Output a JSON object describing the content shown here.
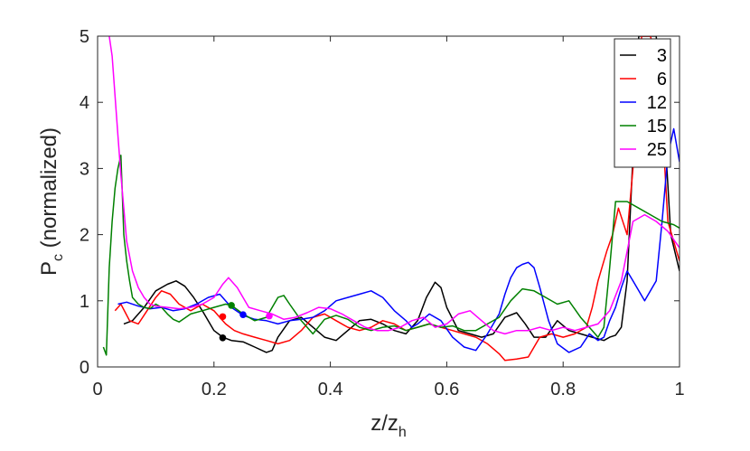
{
  "chart_data": {
    "type": "line",
    "xlabel": "z/z",
    "xlabel_sub": "h",
    "ylabel": "P",
    "ylabel_sub": "c",
    "ylabel_suffix": " (normalized)",
    "xlim": [
      0,
      1
    ],
    "ylim": [
      0,
      5
    ],
    "xticks": [
      0,
      0.2,
      0.4,
      0.6,
      0.8,
      1
    ],
    "xtick_labels": [
      "0",
      "0.2",
      "0.4",
      "0.6",
      "0.8",
      "1"
    ],
    "yticks": [
      0,
      1,
      2,
      3,
      4,
      5
    ],
    "ytick_labels": [
      "0",
      "1",
      "2",
      "3",
      "4",
      "5"
    ],
    "grid": false,
    "legend_position": "top-right",
    "series": [
      {
        "name": "3",
        "color": "#000000",
        "x": [
          0.045,
          0.06,
          0.08,
          0.1,
          0.12,
          0.135,
          0.15,
          0.165,
          0.18,
          0.2,
          0.215,
          0.23,
          0.25,
          0.27,
          0.29,
          0.3,
          0.31,
          0.33,
          0.35,
          0.37,
          0.39,
          0.41,
          0.43,
          0.45,
          0.47,
          0.49,
          0.51,
          0.53,
          0.55,
          0.565,
          0.58,
          0.59,
          0.6,
          0.62,
          0.64,
          0.66,
          0.68,
          0.7,
          0.72,
          0.735,
          0.75,
          0.77,
          0.79,
          0.81,
          0.83,
          0.85,
          0.87,
          0.88,
          0.89,
          0.9,
          0.91,
          0.92,
          0.93,
          0.945,
          0.96,
          0.975,
          0.985,
          1.0
        ],
        "y": [
          0.65,
          0.7,
          0.9,
          1.15,
          1.25,
          1.3,
          1.22,
          1.05,
          0.85,
          0.55,
          0.45,
          0.4,
          0.38,
          0.3,
          0.22,
          0.25,
          0.45,
          0.7,
          0.75,
          0.6,
          0.45,
          0.4,
          0.55,
          0.7,
          0.72,
          0.65,
          0.55,
          0.5,
          0.7,
          1.05,
          1.28,
          1.2,
          0.9,
          0.55,
          0.5,
          0.45,
          0.5,
          0.75,
          0.82,
          0.65,
          0.45,
          0.45,
          0.7,
          0.55,
          0.5,
          0.45,
          0.4,
          0.45,
          0.48,
          0.6,
          1.3,
          3.2,
          5.0,
          5.0,
          5.0,
          3.5,
          2.0,
          1.45
        ],
        "marker": [
          0.215,
          0.44
        ]
      },
      {
        "name": "6",
        "color": "#ff0000",
        "x": [
          0.03,
          0.04,
          0.055,
          0.07,
          0.085,
          0.1,
          0.11,
          0.125,
          0.14,
          0.16,
          0.18,
          0.2,
          0.21,
          0.22,
          0.235,
          0.25,
          0.27,
          0.29,
          0.31,
          0.33,
          0.35,
          0.37,
          0.39,
          0.41,
          0.43,
          0.45,
          0.47,
          0.49,
          0.51,
          0.53,
          0.55,
          0.57,
          0.59,
          0.61,
          0.63,
          0.65,
          0.67,
          0.69,
          0.7,
          0.72,
          0.74,
          0.76,
          0.78,
          0.8,
          0.82,
          0.84,
          0.85,
          0.86,
          0.875,
          0.885,
          0.895,
          0.91,
          0.92,
          0.935,
          0.95,
          0.965,
          0.98,
          1.0
        ],
        "y": [
          0.85,
          0.95,
          0.7,
          0.65,
          0.85,
          1.05,
          1.15,
          1.1,
          0.95,
          0.85,
          0.95,
          0.85,
          0.75,
          0.65,
          0.55,
          0.5,
          0.45,
          0.4,
          0.35,
          0.4,
          0.55,
          0.75,
          0.8,
          0.7,
          0.6,
          0.55,
          0.6,
          0.7,
          0.65,
          0.55,
          0.6,
          0.65,
          0.6,
          0.55,
          0.5,
          0.45,
          0.35,
          0.2,
          0.1,
          0.12,
          0.15,
          0.45,
          0.5,
          0.45,
          0.5,
          0.6,
          0.9,
          1.3,
          1.75,
          2.0,
          2.4,
          2.0,
          3.0,
          5.0,
          5.0,
          4.5,
          2.2,
          1.6
        ],
        "marker": [
          0.215,
          0.76
        ]
      },
      {
        "name": "12",
        "color": "#0000ff",
        "x": [
          0.035,
          0.05,
          0.07,
          0.09,
          0.11,
          0.13,
          0.15,
          0.17,
          0.19,
          0.21,
          0.23,
          0.25,
          0.27,
          0.29,
          0.31,
          0.33,
          0.35,
          0.37,
          0.39,
          0.41,
          0.43,
          0.45,
          0.47,
          0.49,
          0.51,
          0.53,
          0.54,
          0.55,
          0.57,
          0.59,
          0.61,
          0.63,
          0.65,
          0.67,
          0.69,
          0.7,
          0.71,
          0.72,
          0.73,
          0.74,
          0.75,
          0.76,
          0.775,
          0.79,
          0.81,
          0.83,
          0.845,
          0.86,
          0.87,
          0.88,
          0.89,
          0.9,
          0.91,
          0.92,
          0.94,
          0.96,
          0.97,
          0.98,
          0.99,
          1.0
        ],
        "y": [
          0.95,
          0.98,
          0.92,
          0.88,
          0.9,
          0.85,
          0.88,
          0.95,
          1.05,
          1.1,
          0.9,
          0.78,
          0.72,
          0.7,
          0.65,
          0.7,
          0.72,
          0.75,
          0.85,
          1.0,
          1.05,
          1.1,
          1.15,
          1.05,
          0.85,
          0.7,
          0.6,
          0.65,
          0.8,
          0.7,
          0.45,
          0.3,
          0.25,
          0.5,
          0.8,
          1.1,
          1.35,
          1.5,
          1.55,
          1.58,
          1.5,
          1.2,
          0.7,
          0.35,
          0.22,
          0.3,
          0.5,
          0.4,
          0.45,
          0.7,
          0.9,
          1.2,
          1.45,
          1.3,
          1.0,
          1.3,
          2.2,
          3.2,
          3.6,
          3.1
        ],
        "marker": [
          0.25,
          0.79
        ]
      },
      {
        "name": "15",
        "color": "#008000",
        "x": [
          0.01,
          0.015,
          0.02,
          0.025,
          0.03,
          0.035,
          0.04,
          0.045,
          0.05,
          0.055,
          0.06,
          0.07,
          0.08,
          0.09,
          0.1,
          0.11,
          0.12,
          0.13,
          0.14,
          0.16,
          0.18,
          0.2,
          0.22,
          0.23,
          0.25,
          0.27,
          0.29,
          0.31,
          0.32,
          0.33,
          0.35,
          0.37,
          0.39,
          0.41,
          0.43,
          0.45,
          0.47,
          0.49,
          0.51,
          0.53,
          0.55,
          0.57,
          0.59,
          0.61,
          0.63,
          0.65,
          0.67,
          0.69,
          0.71,
          0.73,
          0.75,
          0.77,
          0.79,
          0.81,
          0.83,
          0.85,
          0.86,
          0.87,
          0.88,
          0.89,
          0.91,
          0.93,
          0.95,
          0.97,
          0.99,
          1.0
        ],
        "y": [
          0.3,
          0.18,
          1.5,
          2.2,
          2.7,
          3.0,
          3.2,
          2.0,
          1.6,
          1.3,
          1.05,
          0.95,
          0.9,
          0.88,
          0.95,
          0.9,
          0.8,
          0.72,
          0.68,
          0.8,
          0.85,
          0.9,
          0.95,
          0.93,
          0.8,
          0.7,
          0.75,
          1.05,
          1.08,
          0.95,
          0.7,
          0.5,
          0.72,
          0.78,
          0.72,
          0.6,
          0.55,
          0.6,
          0.62,
          0.55,
          0.6,
          0.65,
          0.6,
          0.62,
          0.55,
          0.55,
          0.65,
          0.75,
          1.0,
          1.18,
          1.15,
          1.05,
          0.95,
          1.0,
          0.75,
          0.55,
          0.45,
          0.6,
          1.5,
          2.5,
          2.5,
          2.4,
          2.3,
          2.2,
          2.15,
          2.1
        ],
        "marker": [
          0.23,
          0.93
        ]
      },
      {
        "name": "25",
        "color": "#ff00ff",
        "x": [
          0.02,
          0.025,
          0.03,
          0.035,
          0.04,
          0.045,
          0.05,
          0.06,
          0.07,
          0.08,
          0.09,
          0.1,
          0.12,
          0.14,
          0.16,
          0.18,
          0.2,
          0.215,
          0.225,
          0.24,
          0.26,
          0.28,
          0.3,
          0.32,
          0.34,
          0.36,
          0.38,
          0.4,
          0.42,
          0.44,
          0.46,
          0.48,
          0.5,
          0.52,
          0.54,
          0.56,
          0.58,
          0.6,
          0.62,
          0.64,
          0.66,
          0.68,
          0.7,
          0.72,
          0.74,
          0.76,
          0.78,
          0.8,
          0.82,
          0.84,
          0.86,
          0.88,
          0.9,
          0.92,
          0.94,
          0.96,
          0.98,
          1.0
        ],
        "y": [
          5.0,
          4.7,
          4.1,
          3.5,
          2.9,
          2.4,
          1.9,
          1.45,
          1.2,
          1.05,
          0.95,
          0.92,
          0.9,
          0.88,
          0.9,
          0.95,
          1.05,
          1.25,
          1.35,
          1.2,
          0.9,
          0.85,
          0.8,
          0.72,
          0.75,
          0.82,
          0.9,
          0.88,
          0.8,
          0.7,
          0.6,
          0.55,
          0.55,
          0.6,
          0.7,
          0.75,
          0.6,
          0.65,
          0.8,
          0.85,
          0.7,
          0.55,
          0.5,
          0.55,
          0.55,
          0.6,
          0.55,
          0.6,
          0.55,
          0.6,
          0.65,
          0.85,
          1.3,
          2.2,
          2.3,
          2.2,
          2.05,
          1.8
        ],
        "marker": [
          0.295,
          0.77
        ]
      }
    ]
  }
}
